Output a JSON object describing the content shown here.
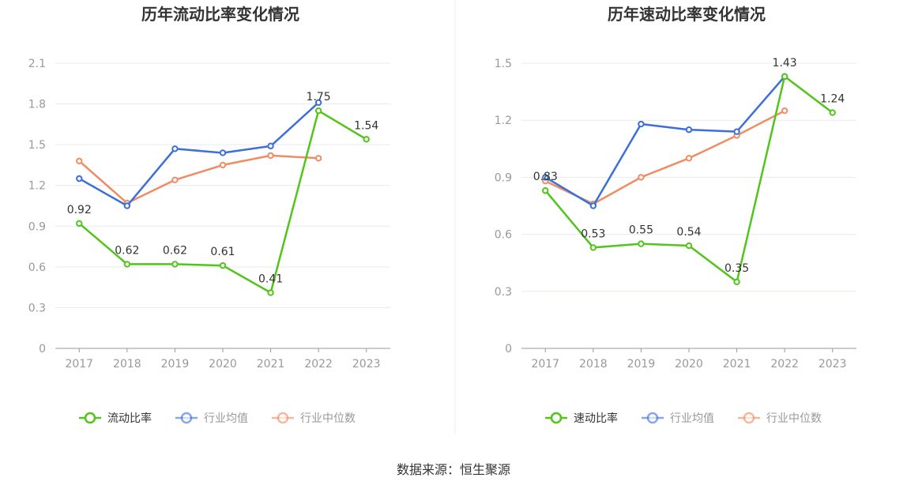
{
  "source": "数据来源：恒生聚源",
  "colors": {
    "primary": "#52c41a",
    "avg": "#3b6fd9",
    "median": "#f08c63"
  },
  "chart_data": [
    {
      "type": "line",
      "title": "历年流动比率变化情况",
      "categories": [
        "2017",
        "2018",
        "2019",
        "2020",
        "2021",
        "2022",
        "2023"
      ],
      "ylim": [
        0,
        2.1
      ],
      "yticks": [
        "0",
        "0.3",
        "0.6",
        "0.9",
        "1.2",
        "1.5",
        "1.8",
        "2.1"
      ],
      "grid": true,
      "legend": "bottom",
      "series": [
        {
          "name": "流动比率",
          "color": "#52c41a",
          "labeled": true,
          "values": [
            0.92,
            0.62,
            0.62,
            0.61,
            0.41,
            1.75,
            1.54
          ],
          "labels": [
            "0.92",
            "0.62",
            "0.62",
            "0.61",
            "0.41",
            "1.75",
            "1.54"
          ]
        },
        {
          "name": "行业均值",
          "color": "#3b6fd9",
          "labeled": false,
          "values": [
            1.25,
            1.05,
            1.47,
            1.44,
            1.49,
            1.81,
            null
          ]
        },
        {
          "name": "行业中位数",
          "color": "#f08c63",
          "labeled": false,
          "values": [
            1.38,
            1.07,
            1.24,
            1.35,
            1.42,
            1.4,
            null
          ]
        }
      ]
    },
    {
      "type": "line",
      "title": "历年速动比率变化情况",
      "categories": [
        "2017",
        "2018",
        "2019",
        "2020",
        "2021",
        "2022",
        "2023"
      ],
      "ylim": [
        0,
        1.5
      ],
      "yticks": [
        "0",
        "0.3",
        "0.6",
        "0.9",
        "1.2",
        "1.5"
      ],
      "grid": true,
      "legend": "bottom",
      "series": [
        {
          "name": "速动比率",
          "color": "#52c41a",
          "labeled": true,
          "values": [
            0.83,
            0.53,
            0.55,
            0.54,
            0.35,
            1.43,
            1.24
          ],
          "labels": [
            "0.83",
            "0.53",
            "0.55",
            "0.54",
            "0.35",
            "1.43",
            "1.24"
          ]
        },
        {
          "name": "行业均值",
          "color": "#3b6fd9",
          "labeled": false,
          "values": [
            0.9,
            0.75,
            1.18,
            1.15,
            1.14,
            1.43,
            null
          ]
        },
        {
          "name": "行业中位数",
          "color": "#f08c63",
          "labeled": false,
          "values": [
            0.88,
            0.76,
            0.9,
            1.0,
            1.12,
            1.25,
            null
          ]
        }
      ]
    }
  ]
}
